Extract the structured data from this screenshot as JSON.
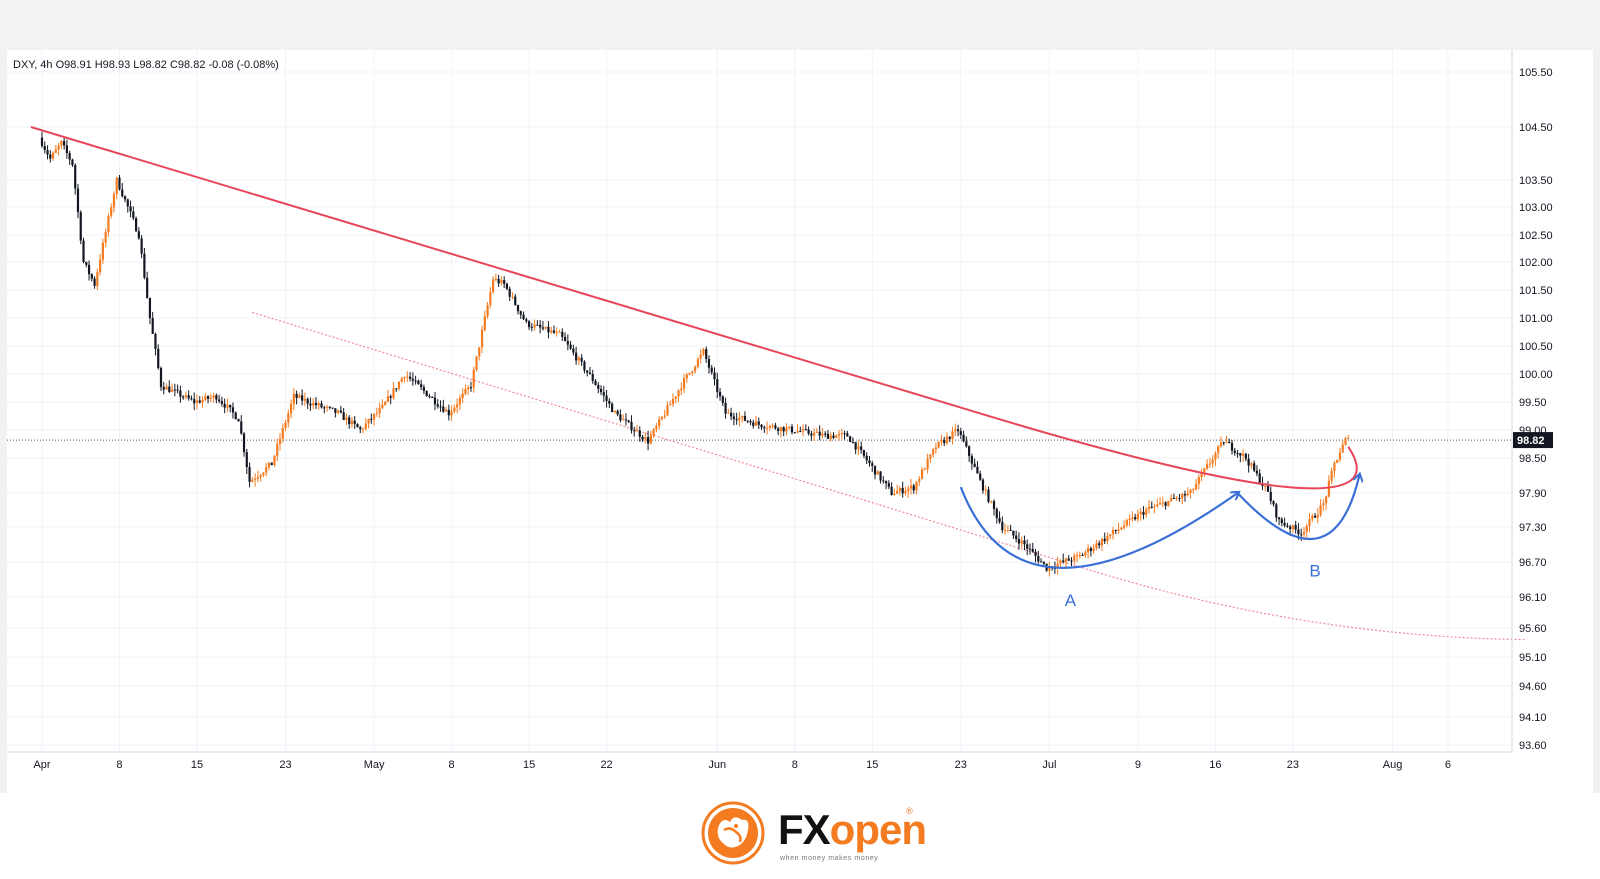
{
  "header": {
    "symbol": "DXY",
    "timeframe": "4h",
    "ohlc_text": "O98.91  H98.93  L98.82  C98.82  -0.08 (-0.08%)"
  },
  "annotations": {
    "label_a": "A",
    "label_b": "B"
  },
  "logo": {
    "brand": "FXopen",
    "brand_fx": "FX",
    "brand_open": "open",
    "tagline": "when money makes money",
    "reg_mark": "®"
  },
  "colors": {
    "bull_candle": "#f47b20",
    "bear_candle": "#131722",
    "trendline": "#e8455a",
    "channel_line": "#f08a95",
    "pattern_curve": "#3a6fd8",
    "last_price_bg": "#131722"
  },
  "chart_data": {
    "type": "candlestick",
    "symbol": "DXY",
    "interval": "4h",
    "last_price": 98.82,
    "last_price_label": "98.82",
    "y_axis": {
      "ticks": [
        "105.50",
        "104.50",
        "103.50",
        "103.00",
        "102.50",
        "102.00",
        "101.50",
        "101.00",
        "100.50",
        "100.00",
        "99.50",
        "99.00",
        "98.50",
        "97.90",
        "97.30",
        "96.70",
        "96.10",
        "95.60",
        "95.10",
        "94.60",
        "94.10",
        "93.60"
      ]
    },
    "x_axis": {
      "ticks": [
        "Apr",
        "8",
        "15",
        "23",
        "May",
        "8",
        "15",
        "22",
        "Jun",
        "8",
        "15",
        "23",
        "Jul",
        "9",
        "16",
        "23",
        "Aug",
        "6"
      ]
    },
    "path_anchors": [
      [
        "Apr 1",
        104.3
      ],
      [
        "Apr 2",
        103.9
      ],
      [
        "Apr 3",
        104.2
      ],
      [
        "Apr 4",
        103.8
      ],
      [
        "Apr 5",
        102.0
      ],
      [
        "Apr 6",
        101.6
      ],
      [
        "Apr 8",
        103.5
      ],
      [
        "Apr 10",
        102.5
      ],
      [
        "Apr 11",
        101.0
      ],
      [
        "Apr 12",
        99.8
      ],
      [
        "Apr 15",
        99.5
      ],
      [
        "Apr 17",
        99.6
      ],
      [
        "Apr 19",
        99.2
      ],
      [
        "Apr 20",
        98.1
      ],
      [
        "Apr 22",
        98.4
      ],
      [
        "Apr 24",
        99.6
      ],
      [
        "Apr 28",
        99.3
      ],
      [
        "Apr 30",
        99.0
      ],
      [
        "May 2",
        99.4
      ],
      [
        "May 4",
        100.0
      ],
      [
        "May 8",
        99.3
      ],
      [
        "May 10",
        99.8
      ],
      [
        "May 12",
        101.7
      ],
      [
        "May 13",
        101.6
      ],
      [
        "May 15",
        100.9
      ],
      [
        "May 18",
        100.7
      ],
      [
        "May 21",
        99.9
      ],
      [
        "May 23",
        99.3
      ],
      [
        "May 26",
        98.8
      ],
      [
        "May 29",
        99.8
      ],
      [
        "May 31",
        100.4
      ],
      [
        "Jun 2",
        99.3
      ],
      [
        "Jun 5",
        99.1
      ],
      [
        "Jun 8",
        99.0
      ],
      [
        "Jun 11",
        98.9
      ],
      [
        "Jun 13",
        98.9
      ],
      [
        "Jun 15",
        98.4
      ],
      [
        "Jun 17",
        97.9
      ],
      [
        "Jun 19",
        98.0
      ],
      [
        "Jun 21",
        98.7
      ],
      [
        "Jun 23",
        99.0
      ],
      [
        "Jun 25",
        98.1
      ],
      [
        "Jun 27",
        97.3
      ],
      [
        "Jun 29",
        97.0
      ],
      [
        "Jul 1",
        96.6
      ],
      [
        "Jul 4",
        96.8
      ],
      [
        "Jul 7",
        97.2
      ],
      [
        "Jul 10",
        97.6
      ],
      [
        "Jul 14",
        97.9
      ],
      [
        "Jul 16",
        98.5
      ],
      [
        "Jul 17",
        98.8
      ],
      [
        "Jul 19",
        98.5
      ],
      [
        "Jul 21",
        97.9
      ],
      [
        "Jul 22",
        97.4
      ],
      [
        "Jul 24",
        97.2
      ],
      [
        "Jul 26",
        97.7
      ],
      [
        "Jul 27",
        98.4
      ],
      [
        "Jul 28",
        98.82
      ]
    ],
    "trendline": [
      [
        "Mar 31",
        104.5
      ],
      [
        "May 13",
        101.7
      ],
      [
        "Jun 23",
        99.4
      ],
      [
        "Jul 28",
        98.7
      ]
    ],
    "channel_line": [
      [
        "Apr 20",
        101.1
      ],
      [
        "Jun 14",
        97.8
      ],
      [
        "Jul 4",
        96.6
      ],
      [
        "Aug 13",
        95.4
      ]
    ],
    "pattern_curves": [
      {
        "label": "A",
        "points": [
          [
            "Jun 23",
            98.0
          ],
          [
            "Jul 2",
            96.6
          ],
          [
            "Jul 18",
            97.9
          ]
        ]
      },
      {
        "label": "B",
        "points": [
          [
            "Jul 18",
            97.9
          ],
          [
            "Jul 25",
            97.1
          ],
          [
            "Jul 29",
            98.2
          ]
        ]
      }
    ]
  }
}
